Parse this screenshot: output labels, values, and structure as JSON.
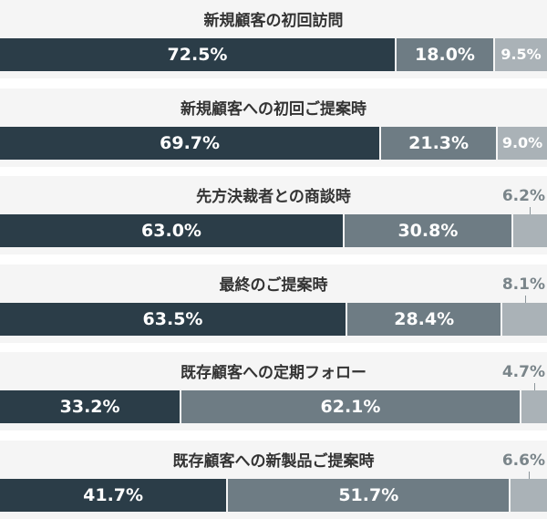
{
  "colors": {
    "series1": "#2b3d48",
    "series2": "#6e7c84",
    "series3": "#aab2b7",
    "band": "#f5f5f5",
    "title": "#333333",
    "outside_label": "#7a858a"
  },
  "chart_data": {
    "type": "bar",
    "orientation": "horizontal",
    "stacked": true,
    "percent": true,
    "categories": [
      "新規顧客の初回訪問",
      "新規顧客への初回ご提案時",
      "先方決裁者との商談時",
      "最終のご提案時",
      "既存顧客への定期フォロー",
      "既存顧客への新製品ご提案時"
    ],
    "series": [
      {
        "values": [
          72.5,
          69.7,
          63.0,
          63.5,
          33.2,
          41.7
        ]
      },
      {
        "values": [
          18.0,
          21.3,
          30.8,
          28.4,
          62.1,
          51.7
        ]
      },
      {
        "values": [
          9.5,
          9.0,
          6.2,
          8.1,
          4.7,
          6.6
        ]
      }
    ],
    "labels": [
      [
        "72.5%",
        "18.0%",
        "9.5%"
      ],
      [
        "69.7%",
        "21.3%",
        "9.0%"
      ],
      [
        "63.0%",
        "30.8%",
        "6.2%"
      ],
      [
        "63.5%",
        "28.4%",
        "8.1%"
      ],
      [
        "33.2%",
        "62.1%",
        "4.7%"
      ],
      [
        "41.7%",
        "51.7%",
        "6.6%"
      ]
    ],
    "third_label_outside": [
      false,
      false,
      true,
      true,
      true,
      true
    ],
    "xlim": [
      0,
      100
    ],
    "grid": false
  }
}
